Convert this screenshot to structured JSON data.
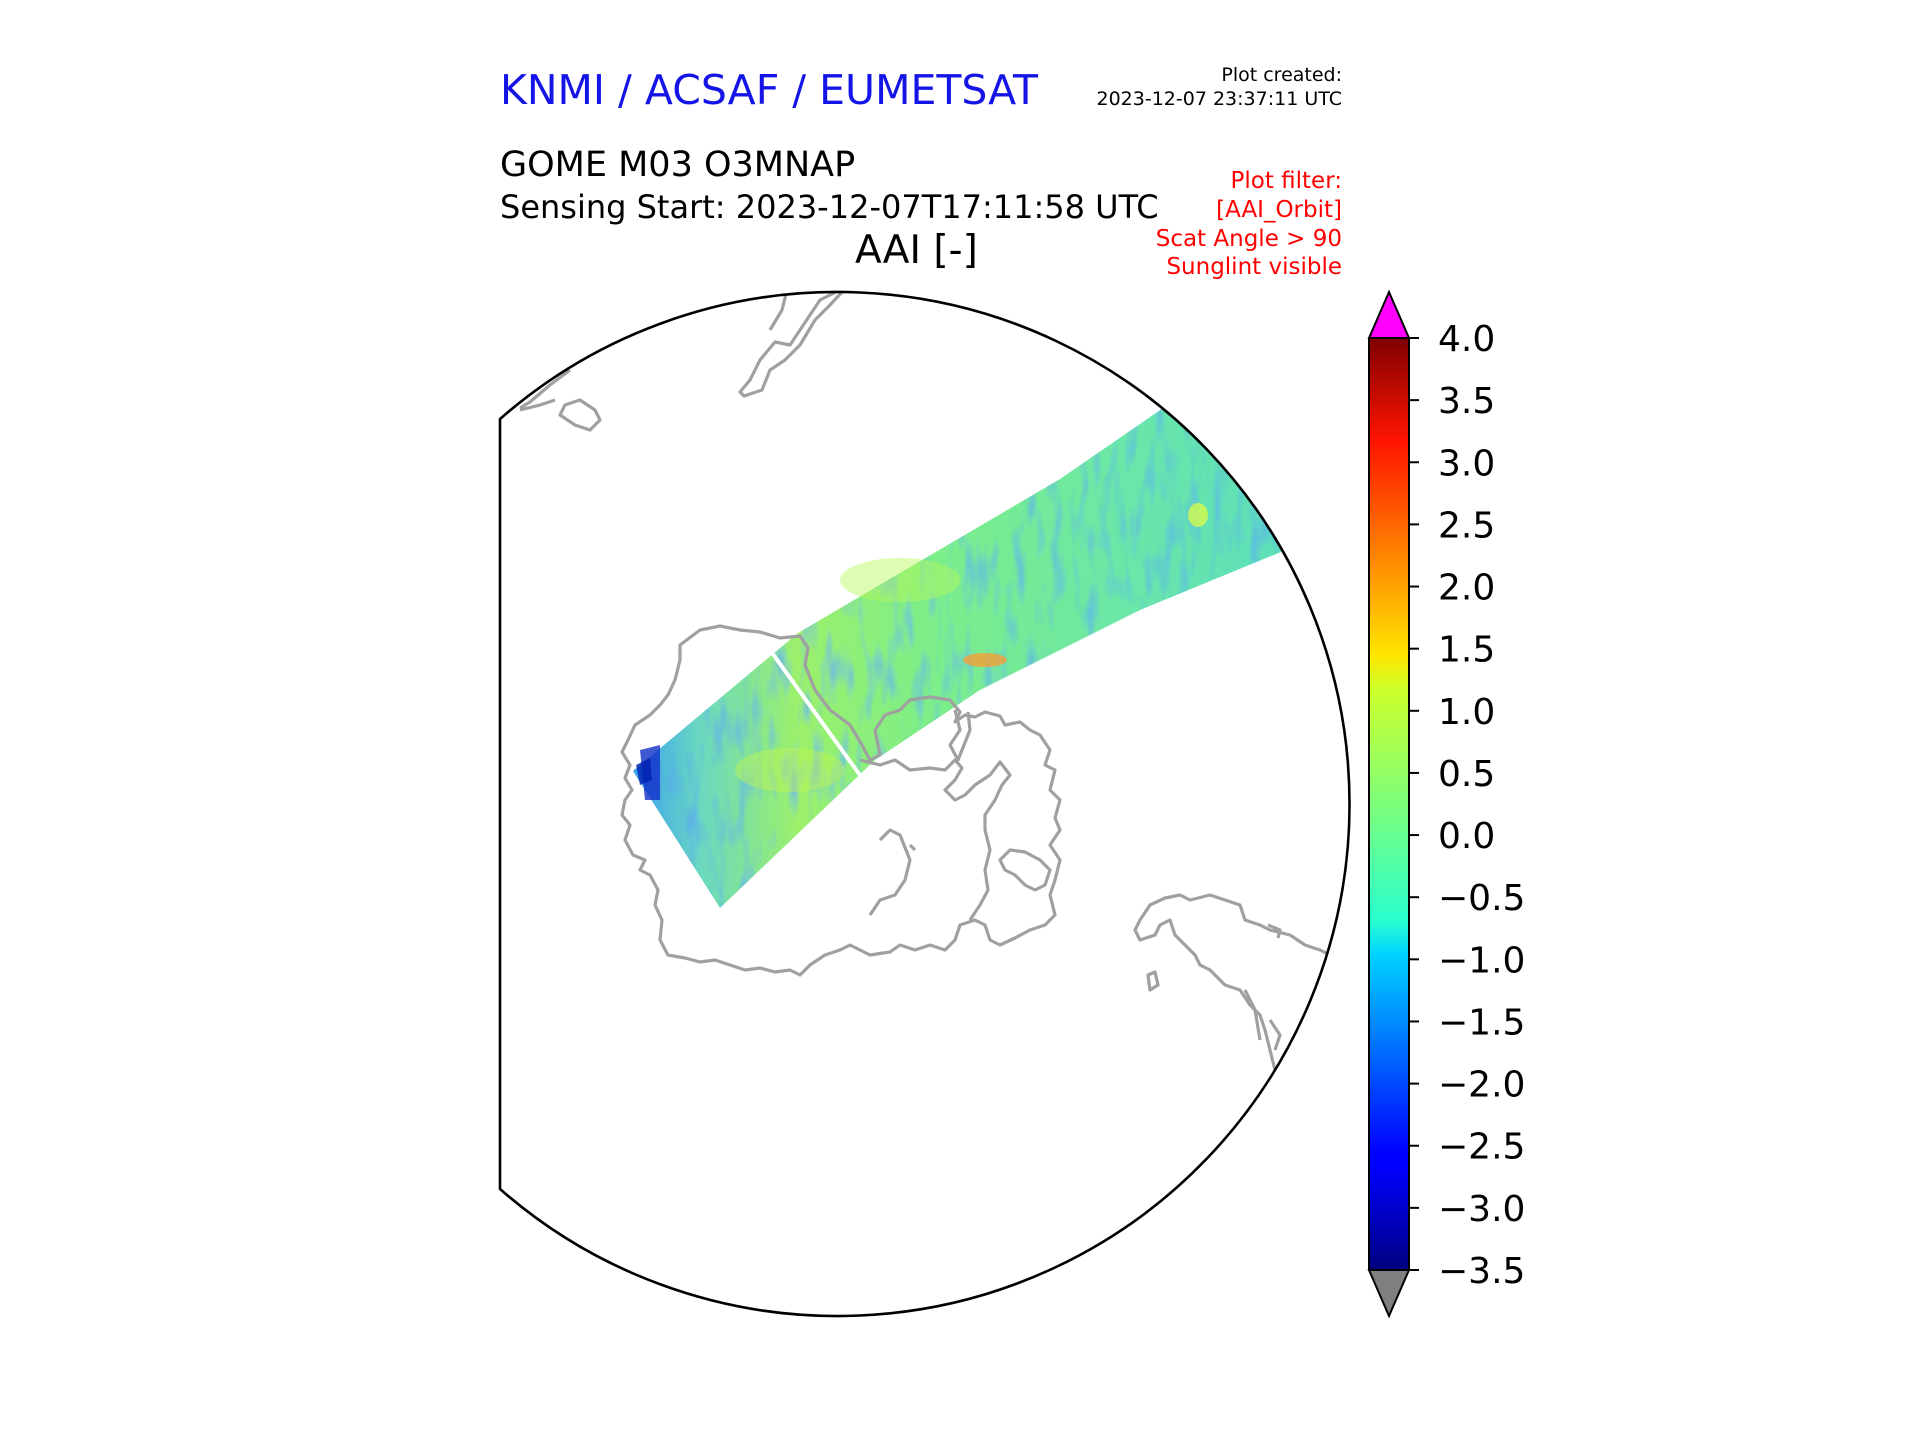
{
  "header": {
    "agency": "KNMI / ACSAF / EUMETSAT",
    "plot_created_label": "Plot created:",
    "plot_created_value": "2023-12-07 23:37:11 UTC",
    "product": "GOME M03 O3MNAP",
    "sensing_start": "Sensing Start: 2023-12-07T17:11:58 UTC",
    "quantity": "AAI [-]"
  },
  "plot_filter": {
    "lines": [
      "Plot filter:",
      "[AAI_Orbit]",
      "Scat Angle > 90",
      "Sunglint visible"
    ]
  },
  "colors": {
    "agency": "#1414e6",
    "filter_text": "#ff0000",
    "coastline": "#a0a0a0",
    "over_range": "#ff00ff",
    "under_range": "#808080"
  },
  "colorbar": {
    "min": -3.5,
    "max": 4.0,
    "colormap": "jet",
    "extend": "both",
    "tick_labels": [
      "4.0",
      "3.5",
      "3.0",
      "2.5",
      "2.0",
      "1.5",
      "1.0",
      "0.5",
      "0.0",
      "−0.5",
      "−1.0",
      "−1.5",
      "−2.0",
      "−2.5",
      "−3.0",
      "−3.5"
    ]
  }
}
